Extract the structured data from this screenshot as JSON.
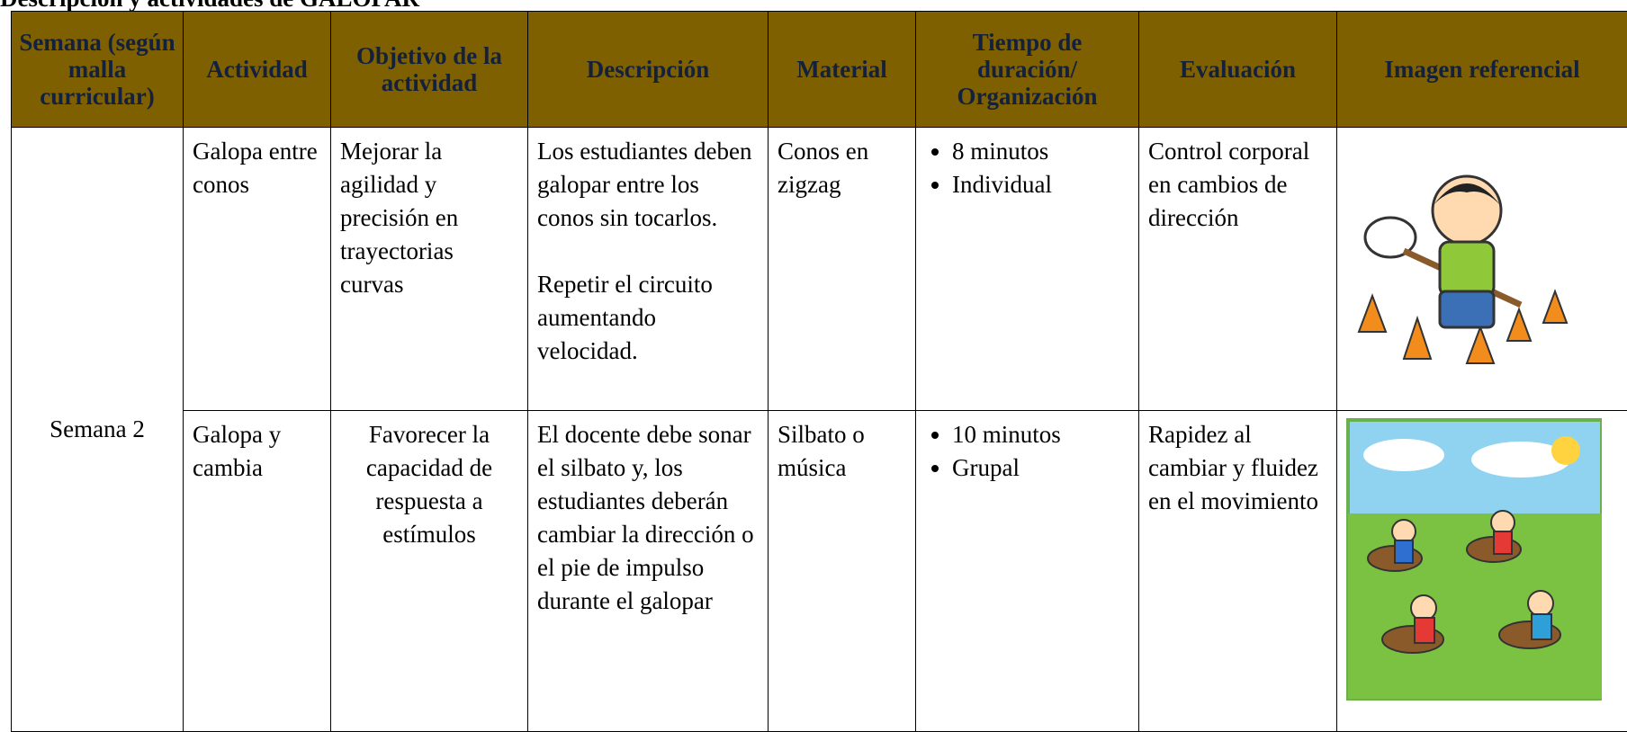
{
  "title": "Descripción y actividades de GALOPAR",
  "table": {
    "header": [
      "Semana (según malla curricular)",
      "Actividad",
      "Objetivo de la actividad",
      "Descripción",
      "Material",
      "Tiempo de duración/ Organización",
      "Evaluación",
      "Imagen referencial"
    ],
    "week": "Semana 2",
    "rows": [
      {
        "activity": "Galopa entre conos",
        "objective": "Mejorar la agilidad y precisión en trayectorias curvas",
        "description": [
          "Los estudiantes deben galopar entre los conos sin tocarlos.",
          "Repetir el circuito aumentando velocidad."
        ],
        "material": "Conos en zigzag",
        "time": [
          "8 minutos",
          "Individual"
        ],
        "evaluation": "Control corporal en cambios de dirección"
      },
      {
        "activity": "Galopa y cambia",
        "objective": "Favorecer la capacidad de respuesta a estímulos",
        "description": [
          "El docente debe sonar el silbato y, los estudiantes deberán cambiar la dirección o el pie de impulso durante el galopar"
        ],
        "material": "Silbato o música",
        "time": [
          "10 minutos",
          "Grupal"
        ],
        "evaluation": "Rapidez al cambiar y fluidez en el movimiento"
      }
    ]
  }
}
